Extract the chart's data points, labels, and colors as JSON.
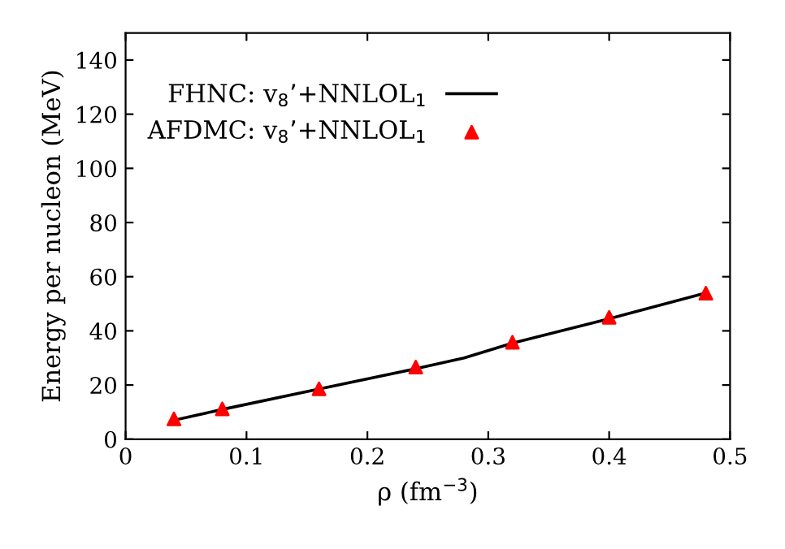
{
  "chart_data": {
    "type": "line",
    "xlabel": "ρ (fm$^{−3}$)",
    "ylabel": "Energy per nucleon (MeV)",
    "xlim": [
      0,
      0.5
    ],
    "xticks": [
      0,
      0.1,
      0.2,
      0.3,
      0.4,
      0.5
    ],
    "ylim": [
      0,
      150
    ],
    "yticks": [
      0,
      20,
      40,
      60,
      80,
      100,
      120,
      140
    ],
    "grid": false,
    "legend": "top left",
    "series": [
      {
        "name": "FHNC: v$_{8}$’+NNLOL$_{1}$",
        "color": "#000000",
        "marker": "none",
        "line_style": "solid",
        "x": [
          0.04,
          0.08,
          0.16,
          0.24,
          0.28,
          0.32,
          0.4,
          0.48
        ],
        "values": [
          7,
          11,
          18.5,
          26,
          30,
          35.5,
          44.5,
          54
        ]
      },
      {
        "name": "AFDMC: v$_{8}$’+NNLOL$_{1}$",
        "type": "scatter",
        "color": "#ff0000",
        "marker": "triangle",
        "x": [
          0.04,
          0.08,
          0.16,
          0.24,
          0.32,
          0.4,
          0.48
        ],
        "values": [
          7.5,
          11.2,
          18.6,
          26.6,
          35.8,
          45,
          53.9
        ]
      }
    ]
  }
}
